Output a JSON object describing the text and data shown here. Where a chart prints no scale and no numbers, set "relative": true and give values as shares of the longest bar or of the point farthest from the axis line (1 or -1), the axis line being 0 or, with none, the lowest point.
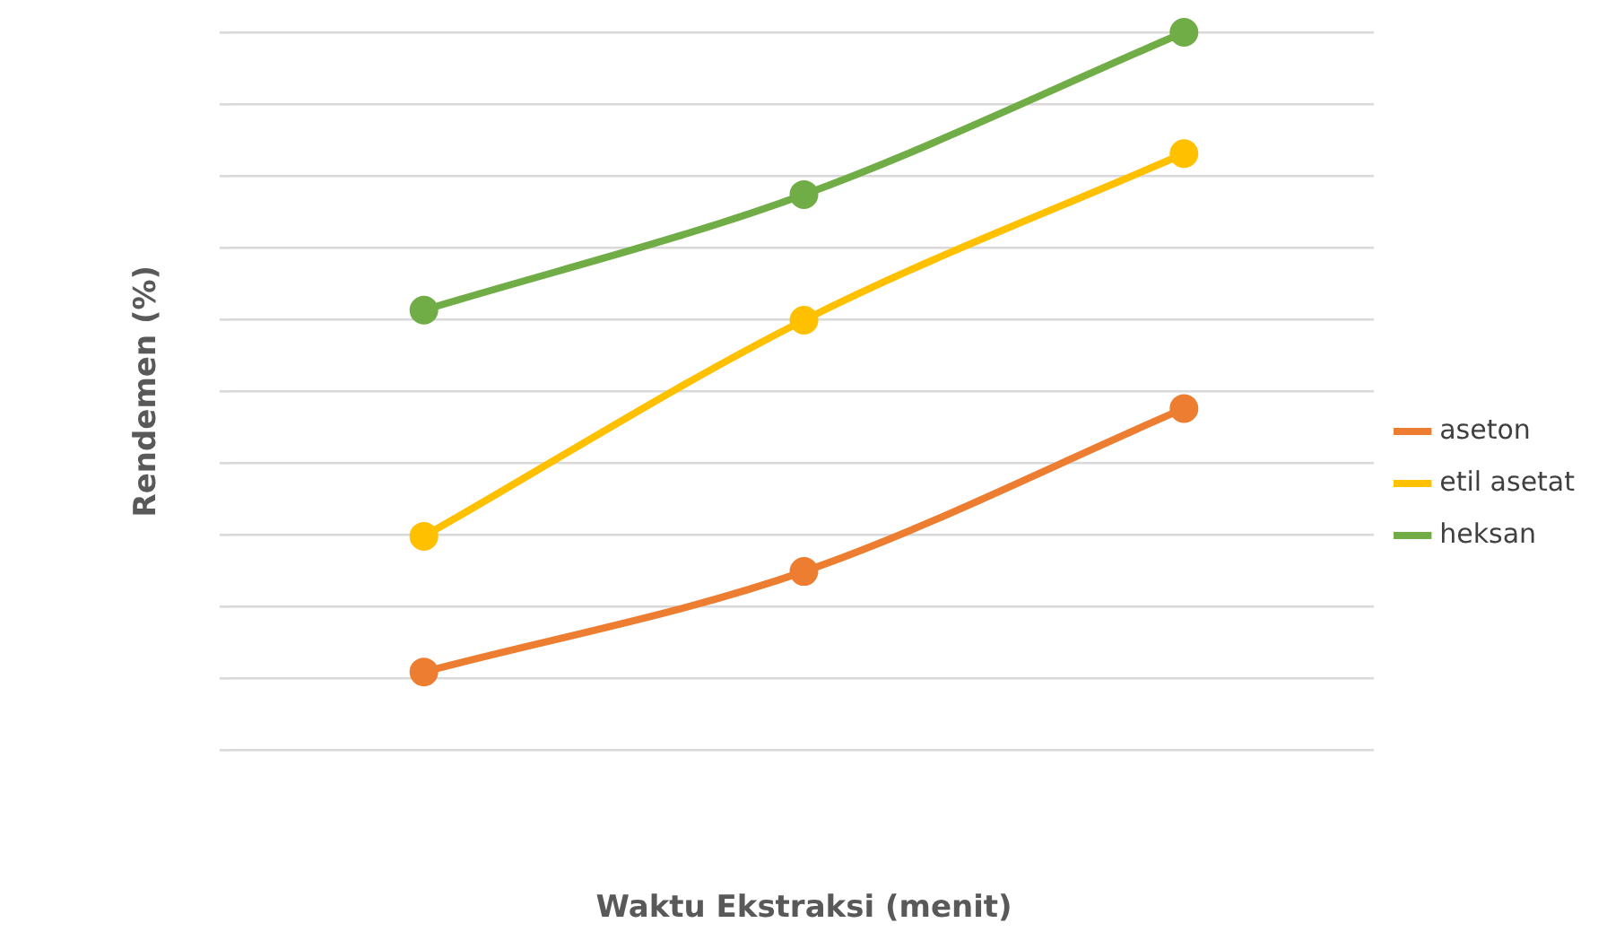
{
  "chart_data": {
    "type": "line",
    "xlabel": "Waktu Ekstraksi (menit)",
    "ylabel": "Rendemen (%)",
    "categories": [
      null,
      null,
      null
    ],
    "relative": true,
    "grid": "y",
    "legend": "right",
    "marker": "circle",
    "line_style": "solid",
    "series": [
      {
        "name": "aseton",
        "color": "#ed7d31",
        "values": [
          0.109,
          0.249,
          0.476
        ]
      },
      {
        "name": "etil asetat",
        "color": "#ffc000",
        "values": [
          0.298,
          0.599,
          0.831
        ]
      },
      {
        "name": "heksan",
        "color": "#70ad47",
        "values": [
          0.613,
          0.774,
          1
        ]
      }
    ]
  }
}
